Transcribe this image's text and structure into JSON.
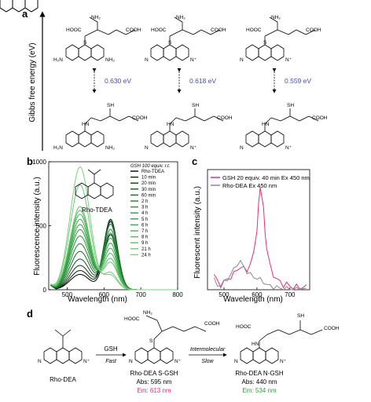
{
  "panel_a": {
    "label": "a",
    "ylabel": "Gibbs free energy (eV)",
    "energies": [
      "0.630 eV",
      "0.618 eV",
      "0.559 eV"
    ],
    "atom_labels": {
      "h2n": "H₂N",
      "nh2": "NH₂",
      "s": "S",
      "sh": "SH",
      "hooc": "HOOC",
      "cooh": "COOH",
      "o": "O",
      "hn": "HN",
      "nh": "NH",
      "n": "N",
      "nplus": "N⁺"
    }
  },
  "panel_b": {
    "label": "b",
    "compound": "Rho-TDEA",
    "legend_title": "GSH 100 equiv. r.t.",
    "legend_items": [
      "Rho-TDEA",
      "10 min",
      "20 min",
      "30 min",
      "60 min",
      "2 h",
      "3 h",
      "4 h",
      "5 h",
      "6 h",
      "7 h",
      "8 h",
      "9 h",
      "21 h",
      "24 h"
    ],
    "colors": [
      "#000000",
      "#0b1f0f",
      "#123a1a",
      "#175524",
      "#1c6b2a",
      "#207d31",
      "#258c37",
      "#2c9a3d",
      "#349f44",
      "#3ea84c",
      "#49b055",
      "#55b85f",
      "#62bf69",
      "#70c774",
      "#7fce80"
    ]
  },
  "panel_c": {
    "label": "c",
    "legend": [
      {
        "name": "GSH 20 equiv. 40 min Ex 450 nm",
        "color": "#e0307a"
      },
      {
        "name": "Rho-DEA Ex 450 nm",
        "color": "#888888"
      }
    ]
  },
  "panel_d": {
    "label": "d",
    "reagent": "GSH",
    "fast": "Fast",
    "intermolecular": "Intermolecular",
    "slow": "Slow",
    "compounds": [
      {
        "name": "Rho-DEA"
      },
      {
        "name": "Rho-DEA S-GSH",
        "abs": "Abs: 595 nm",
        "em": "Em: 613 nm",
        "em_color": "#e0307a"
      },
      {
        "name": "Rho-DEA N-GSH",
        "abs": "Abs: 440 nm",
        "em": "Em: 534 nm",
        "em_color": "#2e9e3a"
      }
    ]
  },
  "chart_data": [
    {
      "type": "line",
      "xlabel": "Wavelength (nm)",
      "ylabel": "Fluorescence intensity (a.u.)",
      "xlim": [
        450,
        800
      ],
      "ylim": [
        0,
        1000
      ],
      "xticks": [
        500,
        600,
        700,
        800
      ],
      "yticks": [
        0,
        500,
        1000
      ],
      "series_shape": {
        "peak1_nm": 535,
        "peak2_nm": 618
      },
      "series": [
        {
          "name": "Rho-TDEA",
          "peak1": 120,
          "peak2": 430
        },
        {
          "name": "10 min",
          "peak1": 150,
          "peak2": 530
        },
        {
          "name": "20 min",
          "peak1": 190,
          "peak2": 550
        },
        {
          "name": "30 min",
          "peak1": 240,
          "peak2": 540
        },
        {
          "name": "60 min",
          "peak1": 300,
          "peak2": 510
        },
        {
          "name": "2 h",
          "peak1": 360,
          "peak2": 470
        },
        {
          "name": "3 h",
          "peak1": 420,
          "peak2": 440
        },
        {
          "name": "4 h",
          "peak1": 470,
          "peak2": 400
        },
        {
          "name": "5 h",
          "peak1": 510,
          "peak2": 360
        },
        {
          "name": "6 h",
          "peak1": 550,
          "peak2": 320
        },
        {
          "name": "7 h",
          "peak1": 590,
          "peak2": 280
        },
        {
          "name": "8 h",
          "peak1": 620,
          "peak2": 240
        },
        {
          "name": "9 h",
          "peak1": 650,
          "peak2": 210
        },
        {
          "name": "21 h",
          "peak1": 820,
          "peak2": 130
        },
        {
          "name": "24 h",
          "peak1": 960,
          "peak2": 110
        }
      ]
    },
    {
      "type": "line",
      "xlabel": "Wavelength (nm)",
      "ylabel": "Fluorescent intensity (a.u.)",
      "xlim": [
        450,
        760
      ],
      "ylim": [
        0,
        47
      ],
      "xticks": [
        500,
        600,
        700
      ],
      "series": [
        {
          "name": "GSH 20 equiv. 40 min Ex 450 nm",
          "x": [
            470,
            480,
            490,
            500,
            510,
            520,
            530,
            540,
            550,
            560,
            570,
            580,
            590,
            600,
            605,
            610,
            615,
            620,
            625,
            630,
            640,
            650,
            660,
            670,
            680,
            690,
            700,
            710,
            720,
            730,
            740,
            750
          ],
          "y": [
            6,
            3,
            2,
            3,
            4,
            5,
            6,
            8,
            9,
            8,
            8,
            10,
            14,
            24,
            33,
            40,
            37,
            31,
            22,
            16,
            9,
            6,
            4,
            3,
            2,
            2,
            1.5,
            1,
            1,
            1,
            1,
            1
          ]
        },
        {
          "name": "Rho-DEA Ex 450 nm",
          "x": [
            470,
            480,
            490,
            500,
            510,
            520,
            530,
            540,
            550,
            560,
            570,
            580,
            590,
            600,
            610,
            620,
            630,
            640,
            650,
            660,
            670,
            680,
            690,
            700,
            710,
            720,
            730,
            740,
            750
          ],
          "y": [
            4,
            1.5,
            2,
            3,
            4,
            6,
            8,
            10,
            11,
            9,
            7,
            6,
            5,
            4.5,
            4,
            3,
            2,
            1.5,
            1,
            1,
            0.5,
            0.5,
            0.5,
            0.3,
            0.2,
            0.2,
            0.2,
            0.2,
            0.2
          ]
        }
      ]
    }
  ]
}
